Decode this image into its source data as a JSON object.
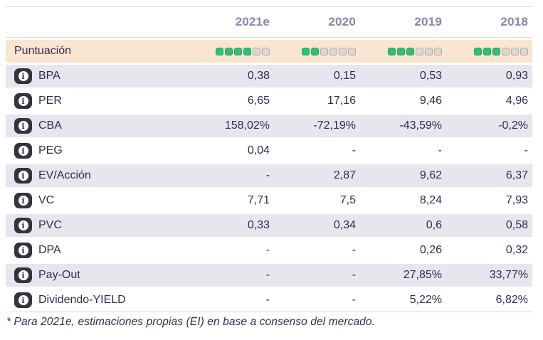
{
  "table": {
    "columns": [
      "2021e",
      "2020",
      "2019",
      "2018"
    ],
    "score_row": {
      "label": "Puntuación",
      "max": 6,
      "scores": [
        4,
        2,
        3,
        3
      ]
    },
    "rows": [
      {
        "label": "BPA",
        "values": [
          "0,38",
          "0,15",
          "0,53",
          "0,93"
        ]
      },
      {
        "label": "PER",
        "values": [
          "6,65",
          "17,16",
          "9,46",
          "4,96"
        ]
      },
      {
        "label": "CBA",
        "values": [
          "158,02%",
          "-72,19%",
          "-43,59%",
          "-0,2%"
        ]
      },
      {
        "label": "PEG",
        "values": [
          "0,04",
          "-",
          "-",
          "-"
        ]
      },
      {
        "label": "EV/Acción",
        "values": [
          "-",
          "2,87",
          "9,62",
          "6,37"
        ]
      },
      {
        "label": "VC",
        "values": [
          "7,71",
          "7,5",
          "8,24",
          "7,93"
        ]
      },
      {
        "label": "PVC",
        "values": [
          "0,33",
          "0,34",
          "0,6",
          "0,58"
        ]
      },
      {
        "label": "DPA",
        "values": [
          "-",
          "-",
          "0,26",
          "0,32"
        ]
      },
      {
        "label": "Pay-Out",
        "values": [
          "-",
          "-",
          "27,85%",
          "33,77%"
        ]
      },
      {
        "label": "Dividendo-YIELD",
        "values": [
          "-",
          "-",
          "5,22%",
          "6,82%"
        ]
      }
    ],
    "footnote": "* Para 2021e, estimaciones propias (EI) en base a consenso del mercado."
  },
  "icons": {
    "info": "i"
  },
  "colors": {
    "score_filled": "#35bd72",
    "score_empty": "#ded7d1",
    "score_row_bg": "#fae5d2",
    "alt_row_bg": "#e6e6ee",
    "header_text": "#8487a9",
    "body_text": "#2e2d4d",
    "divider": "#d9d9e3",
    "info_badge_bg": "#34333e"
  }
}
